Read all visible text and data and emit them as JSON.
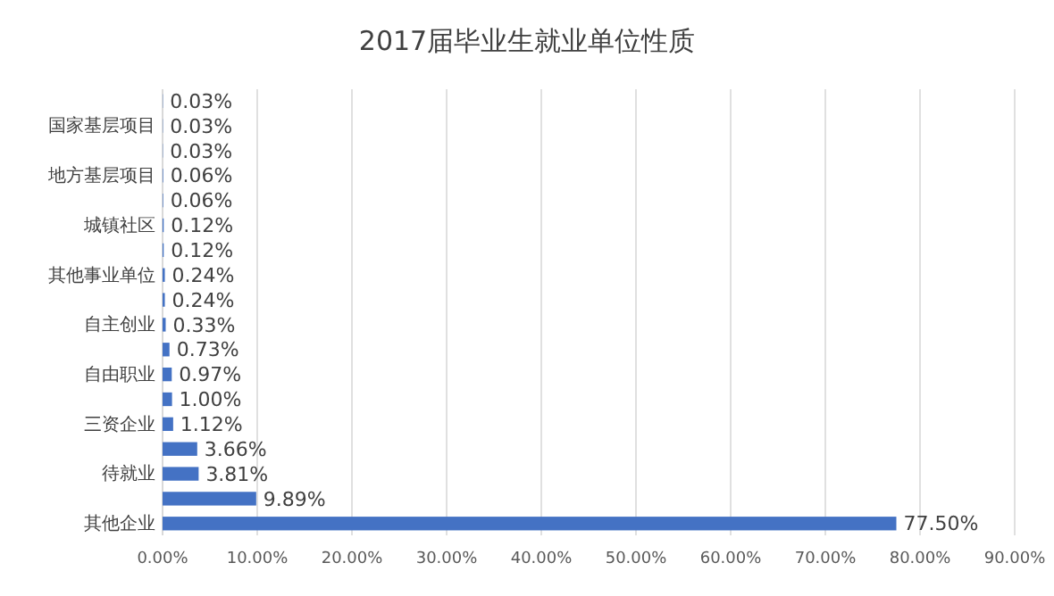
{
  "chart_data": {
    "type": "bar",
    "orientation": "horizontal",
    "title": "2017届毕业生就业单位性质",
    "categories": [
      null,
      "国家基层项目",
      null,
      "地方基层项目",
      null,
      "城镇社区",
      null,
      "其他事业单位",
      null,
      "自主创业",
      null,
      "自由职业",
      null,
      "三资企业",
      null,
      "待就业",
      null,
      "其他企业"
    ],
    "values": [
      0.03,
      0.03,
      0.03,
      0.06,
      0.06,
      0.12,
      0.12,
      0.24,
      0.24,
      0.33,
      0.73,
      0.97,
      1.0,
      1.12,
      3.66,
      3.81,
      9.89,
      77.5
    ],
    "value_labels": [
      "0.03%",
      "0.03%",
      "0.03%",
      "0.06%",
      "0.06%",
      "0.12%",
      "0.12%",
      "0.24%",
      "0.24%",
      "0.33%",
      "0.73%",
      "0.97%",
      "1.00%",
      "1.12%",
      "3.66%",
      "3.81%",
      "9.89%",
      "77.50%"
    ],
    "color": "#4472c4",
    "xlim": [
      0,
      90
    ],
    "xticks": [
      {
        "value": 0,
        "label": "0.00%"
      },
      {
        "value": 10,
        "label": "10.00%"
      },
      {
        "value": 20,
        "label": "20.00%"
      },
      {
        "value": 30,
        "label": "30.00%"
      },
      {
        "value": 40,
        "label": "40.00%"
      },
      {
        "value": 50,
        "label": "50.00%"
      },
      {
        "value": 60,
        "label": "60.00%"
      },
      {
        "value": 70,
        "label": "70.00%"
      },
      {
        "value": 80,
        "label": "80.00%"
      },
      {
        "value": 90,
        "label": "90.00%"
      }
    ],
    "grid": "x"
  }
}
